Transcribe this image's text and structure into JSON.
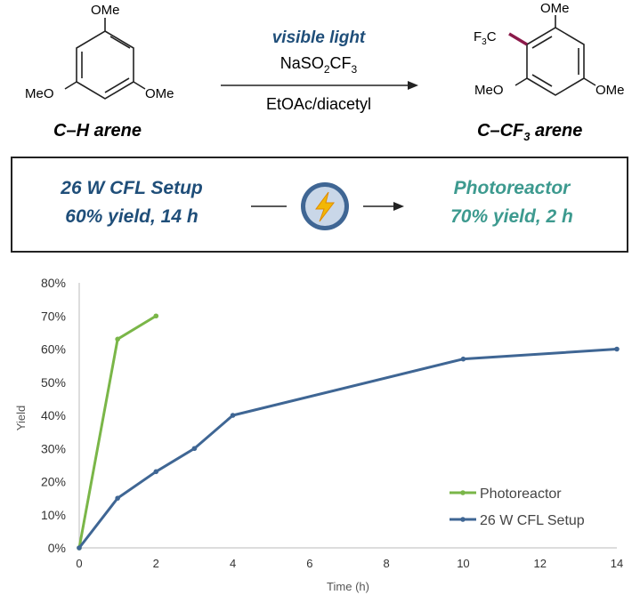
{
  "scheme": {
    "reactant": {
      "label_c": "C",
      "label_dash": "–",
      "label_h": "H arene",
      "ome_top": "OMe",
      "ome_left": "MeO",
      "ome_right": "OMe"
    },
    "product": {
      "label": "C–CF",
      "label_sub": "3",
      "label_suffix": " arene",
      "ome_top": "OMe",
      "ome_left": "MeO",
      "ome_right": "OMe",
      "cf3_f": "F",
      "cf3_sub": "3",
      "cf3_c": "C"
    },
    "conditions": {
      "line1": "visible light",
      "line2_a": "NaSO",
      "line2_sub1": "2",
      "line2_b": "CF",
      "line2_sub2": "3",
      "line3": "EtOAc/diacetyl"
    }
  },
  "comparison": {
    "left_line1": "26 W CFL Setup",
    "left_line2": "60% yield, 14 h",
    "right_line1": "Photoreactor",
    "right_line2": "70% yield, 2 h",
    "icon": "lightning-bolt-icon"
  },
  "colors": {
    "photoreactor": "#7ab648",
    "cfl": "#3f6694",
    "cfl_text": "#1f4e79",
    "photo_text": "#3d9a8f",
    "bond": "#8b1a4a"
  },
  "chart_data": {
    "type": "line",
    "xlabel": "Time (h)",
    "ylabel": "Yield",
    "xlim": [
      0,
      14
    ],
    "ylim": [
      0,
      80
    ],
    "xticks": [
      0,
      2,
      4,
      6,
      8,
      10,
      12,
      14
    ],
    "yticks": [
      "0%",
      "10%",
      "20%",
      "30%",
      "40%",
      "50%",
      "60%",
      "70%",
      "80%"
    ],
    "legend": "bottom-right",
    "grid": false,
    "series": [
      {
        "name": "Photoreactor",
        "color": "#7ab648",
        "x": [
          0,
          1,
          2
        ],
        "y": [
          0,
          63,
          70
        ]
      },
      {
        "name": "26 W CFL Setup",
        "color": "#3f6694",
        "x": [
          0,
          1,
          2,
          3,
          4,
          10,
          14
        ],
        "y": [
          0,
          15,
          23,
          30,
          40,
          57,
          60
        ]
      }
    ]
  }
}
